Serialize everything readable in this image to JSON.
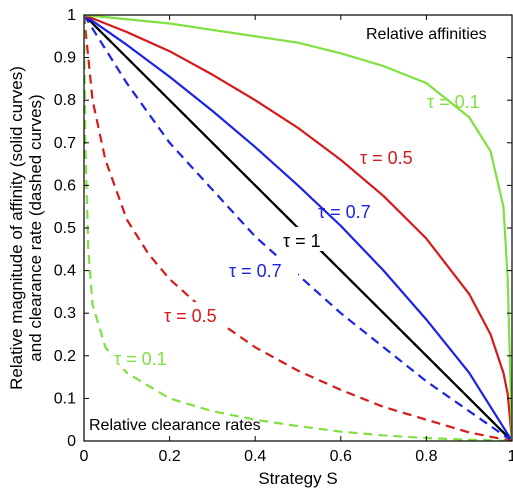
{
  "chart_data": {
    "type": "line",
    "title": "",
    "xlabel": "Strategy S",
    "ylabel_lines": [
      "Relative magnitude of affinity (solid curves)",
      "and clearance rate (dashed curves)"
    ],
    "xlim": [
      0,
      1
    ],
    "ylim": [
      0,
      1
    ],
    "xticks": [
      "0",
      "0.2",
      "0.4",
      "0.6",
      "0.8",
      "1"
    ],
    "yticks": [
      "0",
      "0.1",
      "0.2",
      "0.3",
      "0.4",
      "0.5",
      "0.6",
      "0.7",
      "0.8",
      "0.9",
      "1"
    ],
    "grid": false,
    "annotations": {
      "top_right": "Relative affinities",
      "bottom_left": "Relative clearance rates"
    },
    "series": [
      {
        "kind": "affinity",
        "style": "solid",
        "tau": 0.1,
        "color": "#7fe040",
        "label": "τ = 0.1",
        "x": [
          0,
          0.1,
          0.2,
          0.3,
          0.4,
          0.5,
          0.6,
          0.7,
          0.8,
          0.9,
          0.95,
          0.98,
          0.99,
          1
        ],
        "y": [
          1,
          0.99,
          0.98,
          0.965,
          0.95,
          0.935,
          0.91,
          0.88,
          0.84,
          0.76,
          0.68,
          0.55,
          0.38,
          0
        ]
      },
      {
        "kind": "affinity",
        "style": "solid",
        "tau": 0.5,
        "color": "#d61a1a",
        "label": "τ = 0.5",
        "x": [
          0,
          0.1,
          0.2,
          0.3,
          0.4,
          0.5,
          0.6,
          0.7,
          0.8,
          0.9,
          0.95,
          0.98,
          0.99,
          1
        ],
        "y": [
          1,
          0.96,
          0.915,
          0.86,
          0.8,
          0.735,
          0.66,
          0.575,
          0.475,
          0.345,
          0.25,
          0.16,
          0.11,
          0
        ]
      },
      {
        "kind": "affinity",
        "style": "solid",
        "tau": 0.7,
        "color": "#1a23e6",
        "label": "τ = 0.7",
        "x": [
          0,
          0.1,
          0.2,
          0.3,
          0.4,
          0.5,
          0.6,
          0.7,
          0.8,
          0.9,
          1
        ],
        "y": [
          1,
          0.93,
          0.855,
          0.775,
          0.69,
          0.6,
          0.505,
          0.4,
          0.285,
          0.16,
          0
        ]
      },
      {
        "kind": "affinity",
        "style": "solid",
        "tau": 1,
        "color": "#000000",
        "label": "τ = 1",
        "x": [
          0,
          1
        ],
        "y": [
          1,
          0
        ]
      },
      {
        "kind": "clearance",
        "style": "dashed",
        "tau": 1,
        "color": "#000000",
        "label": "",
        "x": [
          0,
          1
        ],
        "y": [
          1,
          0
        ]
      },
      {
        "kind": "clearance",
        "style": "dashed",
        "tau": 0.7,
        "color": "#1a23e6",
        "label": "τ = 0.7",
        "x": [
          0,
          0.1,
          0.2,
          0.3,
          0.4,
          0.5,
          0.6,
          0.7,
          0.8,
          0.9,
          1
        ],
        "y": [
          1,
          0.84,
          0.7,
          0.59,
          0.48,
          0.39,
          0.3,
          0.22,
          0.14,
          0.07,
          0
        ]
      },
      {
        "kind": "clearance",
        "style": "dashed",
        "tau": 0.5,
        "color": "#d61a1a",
        "label": "τ = 0.5",
        "x": [
          0,
          0.02,
          0.05,
          0.1,
          0.15,
          0.2,
          0.3,
          0.4,
          0.5,
          0.6,
          0.7,
          0.8,
          0.9,
          1
        ],
        "y": [
          1,
          0.8,
          0.66,
          0.52,
          0.44,
          0.38,
          0.29,
          0.22,
          0.165,
          0.12,
          0.08,
          0.05,
          0.02,
          0
        ]
      },
      {
        "kind": "clearance",
        "style": "dashed",
        "tau": 0.1,
        "color": "#7fe040",
        "label": "τ = 0.1",
        "x": [
          0,
          0.003,
          0.01,
          0.02,
          0.05,
          0.1,
          0.2,
          0.3,
          0.4,
          0.5,
          0.6,
          0.7,
          0.8,
          0.9,
          1
        ],
        "y": [
          1,
          0.7,
          0.45,
          0.32,
          0.22,
          0.16,
          0.1,
          0.07,
          0.05,
          0.035,
          0.022,
          0.013,
          0.007,
          0.003,
          0
        ]
      }
    ]
  }
}
